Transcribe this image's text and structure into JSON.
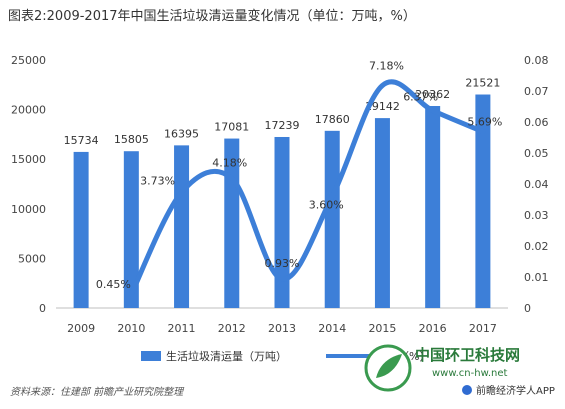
{
  "chart_data": {
    "type": "bar",
    "title": "图表2:2009-2017年中国生活垃圾清运量变化情况（单位：万吨，%）",
    "categories": [
      "2009",
      "2010",
      "2011",
      "2012",
      "2013",
      "2014",
      "2015",
      "2016",
      "2017"
    ],
    "series": [
      {
        "name": "生活垃圾清运量（万吨）",
        "type": "bar",
        "axis": "left",
        "values": [
          15734,
          15805,
          16395,
          17081,
          17239,
          17860,
          19142,
          20362,
          21521
        ],
        "labels": [
          "15734",
          "15805",
          "16395",
          "17081",
          "17239",
          "17860",
          "19142",
          "20362",
          "21521"
        ]
      },
      {
        "name": "增速（%）",
        "type": "line",
        "axis": "right",
        "values": [
          null,
          0.0045,
          0.0373,
          0.0418,
          0.0093,
          0.036,
          0.0718,
          0.0637,
          0.0569
        ],
        "labels": [
          "",
          "0.45%",
          "3.73%",
          "4.18%",
          "0.93%",
          "3.60%",
          "7.18%",
          "6.37%",
          "5.69%"
        ]
      }
    ],
    "ylim": [
      0,
      25000
    ],
    "y_ticks": [
      "0",
      "5000",
      "10000",
      "15000",
      "20000",
      "25000"
    ],
    "y2lim": [
      0,
      0.08
    ],
    "y2_ticks": [
      "0",
      "0.01",
      "0.02",
      "0.03",
      "0.04",
      "0.05",
      "0.06",
      "0.07",
      "0.08"
    ],
    "legend_position": "bottom",
    "colors": {
      "bar": "#3d7fd8",
      "line": "#3d7fd8"
    }
  },
  "source": "资料来源：住建部 前瞻产业研究院整理",
  "watermark": {
    "main": "中国环卫科技网",
    "url": "www.cn-hw.net",
    "app": "前瞻经济学人APP"
  }
}
